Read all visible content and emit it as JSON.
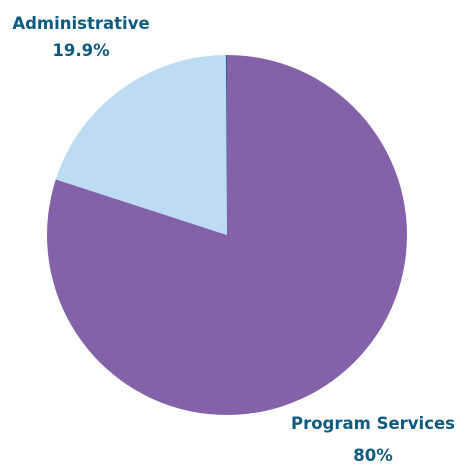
{
  "chart_data": {
    "type": "pie",
    "slices": [
      {
        "label": "Program Services",
        "value": 80,
        "value_label": "80%",
        "color": "#8462aa"
      },
      {
        "label": "Administrative",
        "value": 19.9,
        "value_label": "19.9%",
        "color": "#bcdcf3"
      },
      {
        "label": "",
        "value": 0.1,
        "value_label": "",
        "color": "#3b5ea8"
      }
    ],
    "label_color": "#0f5b80"
  }
}
